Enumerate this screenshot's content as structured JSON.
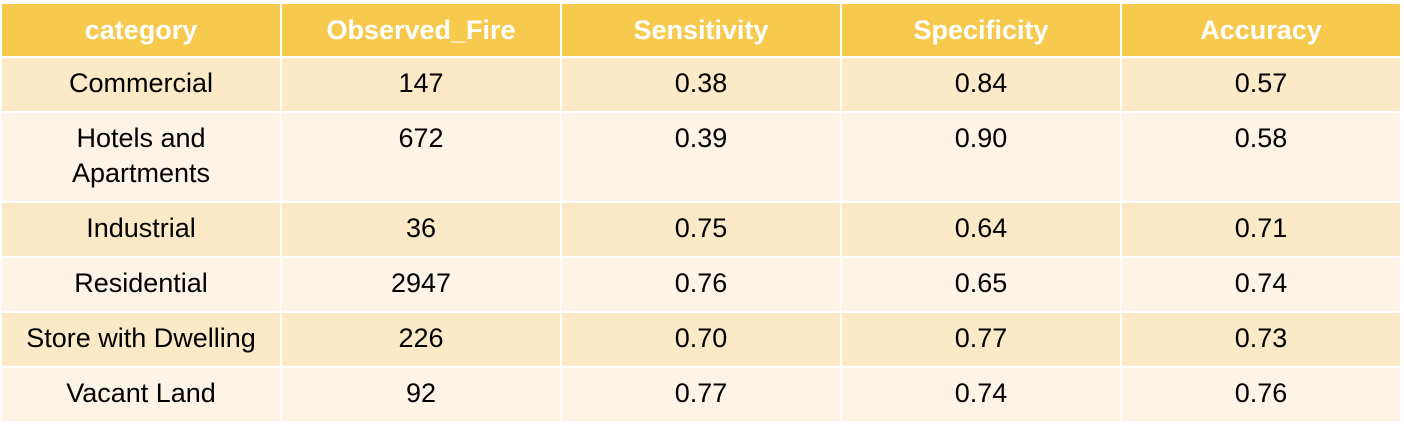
{
  "chart_data": {
    "type": "table",
    "columns": [
      "category",
      "Observed_Fire",
      "Sensitivity",
      "Specificity",
      "Accuracy"
    ],
    "rows": [
      [
        "Commercial",
        "147",
        "0.38",
        "0.84",
        "0.57"
      ],
      [
        "Hotels and Apartments",
        "672",
        "0.39",
        "0.90",
        "0.58"
      ],
      [
        "Industrial",
        "36",
        "0.75",
        "0.64",
        "0.71"
      ],
      [
        "Residential",
        "2947",
        "0.76",
        "0.65",
        "0.74"
      ],
      [
        "Store with Dwelling",
        "226",
        "0.70",
        "0.77",
        "0.73"
      ],
      [
        "Vacant Land",
        "92",
        "0.77",
        "0.74",
        "0.76"
      ]
    ]
  },
  "colors": {
    "header_bg": "#f7ca4d",
    "header_text": "#ffffff",
    "row_odd_bg": "#fbe9c8",
    "row_even_bg": "#fdf4e6"
  }
}
